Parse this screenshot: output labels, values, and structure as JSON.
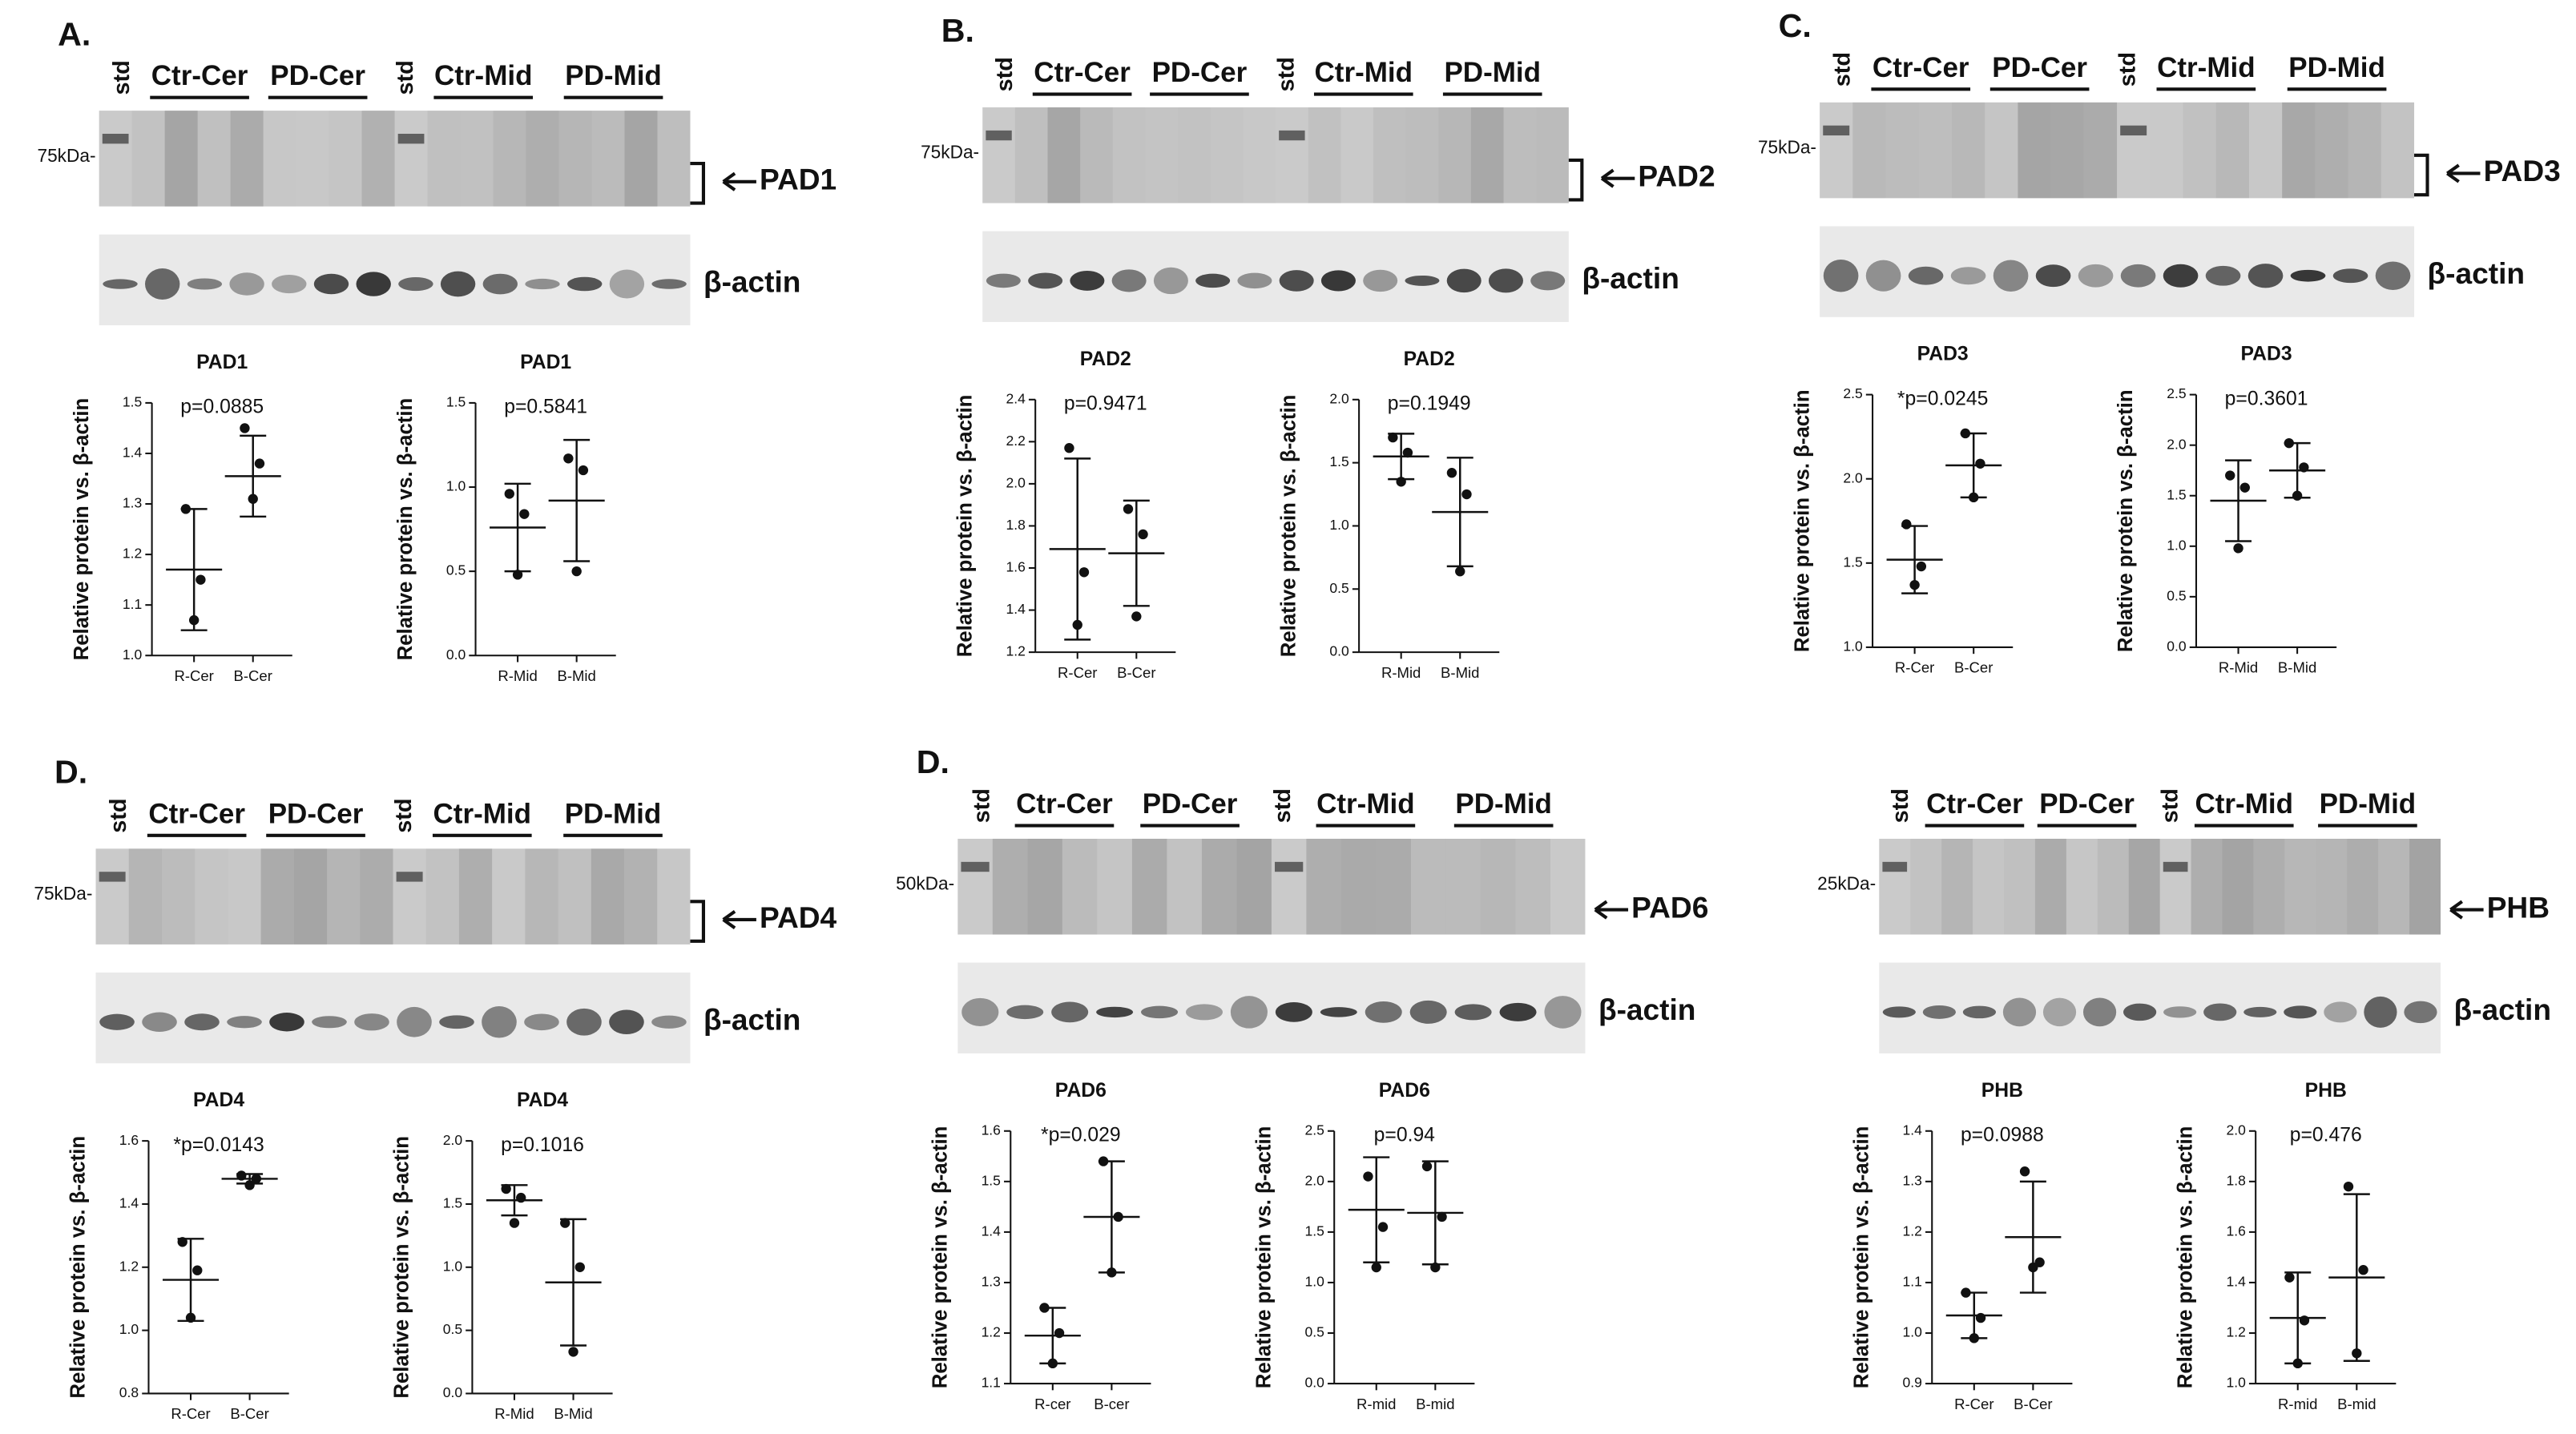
{
  "blots": [
    {
      "label": "A.",
      "lanes": [
        "std",
        "Ctr-Cer",
        "PD-Cer",
        "std",
        "Ctr-Mid",
        "PD-Mid"
      ],
      "marker": "75kDa-",
      "target": "PAD1",
      "loading": "β-actin"
    },
    {
      "label": "B.",
      "lanes": [
        "std",
        "Ctr-Cer",
        "PD-Cer",
        "std",
        "Ctr-Mid",
        "PD-Mid"
      ],
      "marker": "75kDa-",
      "target": "PAD2",
      "loading": "β-actin"
    },
    {
      "label": "C.",
      "lanes": [
        "std",
        "Ctr-Cer",
        "PD-Cer",
        "std",
        "Ctr-Mid",
        "PD-Mid"
      ],
      "marker": "75kDa-",
      "target": "PAD3",
      "loading": "β-actin"
    },
    {
      "label": "D.",
      "lanes": [
        "std",
        "Ctr-Cer",
        "PD-Cer",
        "std",
        "Ctr-Mid",
        "PD-Mid"
      ],
      "marker": "75kDa-",
      "target": "PAD4",
      "loading": "β-actin"
    },
    {
      "label": "D.",
      "lanes": [
        "std",
        "Ctr-Cer",
        "PD-Cer",
        "std",
        "Ctr-Mid",
        "PD-Mid"
      ],
      "marker": "50kDa-",
      "target": "PAD6",
      "loading": "β-actin"
    },
    {
      "lanes": [
        "std",
        "Ctr-Cer",
        "PD-Cer",
        "std",
        "Ctr-Mid",
        "PD-Mid"
      ],
      "marker": "25kDa-",
      "target": "PHB",
      "loading": "β-actin"
    }
  ],
  "chart_data": [
    {
      "type": "dot",
      "title": "PAD1",
      "y_label": "Relative protein vs. β-actin",
      "annotation": "p=0.0885",
      "categories": [
        "R-Cer",
        "B-Cer"
      ],
      "points": [
        [
          1.29,
          1.15,
          1.07
        ],
        [
          1.45,
          1.38,
          1.31
        ]
      ],
      "mean": [
        1.17,
        1.355
      ],
      "sd": [
        0.12,
        0.08
      ],
      "ylim": [
        1,
        1.5
      ],
      "yticks": [
        {
          "value": 1,
          "label": "1.0"
        },
        1.1,
        1.2,
        1.3,
        1.4,
        1.5
      ]
    },
    {
      "type": "dot",
      "title": "PAD1",
      "y_label": "Relative protein vs. β-actin",
      "annotation": "p=0.5841",
      "categories": [
        "R-Mid",
        "B-Mid"
      ],
      "points": [
        [
          0.96,
          0.84,
          0.48
        ],
        [
          1.17,
          1.1,
          0.5
        ]
      ],
      "mean": [
        0.76,
        0.92
      ],
      "sd": [
        0.26,
        0.36
      ],
      "ylim": [
        0,
        1.5
      ],
      "yticks": [
        {
          "value": 0,
          "label": "0.0"
        },
        0.5,
        {
          "value": 1,
          "label": "1.0"
        },
        1.5
      ]
    },
    {
      "type": "dot",
      "title": "PAD2",
      "y_label": "Relative protein vs. β-actin",
      "annotation": "p=0.9471",
      "categories": [
        "R-Cer",
        "B-Cer"
      ],
      "points": [
        [
          2.17,
          1.58,
          1.33
        ],
        [
          1.88,
          1.76,
          1.37
        ]
      ],
      "mean": [
        1.69,
        1.67
      ],
      "sd": [
        0.43,
        0.25
      ],
      "ylim": [
        1.2,
        2.4
      ],
      "yticks": [
        1.2,
        1.4,
        1.6,
        1.8,
        {
          "value": 2,
          "label": "2.0"
        },
        2.2,
        2.4
      ]
    },
    {
      "type": "dot",
      "title": "PAD2",
      "y_label": "Relative protein vs. β-actin",
      "annotation": "p=0.1949",
      "categories": [
        "R-Mid",
        "B-Mid"
      ],
      "points": [
        [
          1.7,
          1.58,
          1.35
        ],
        [
          1.42,
          1.25,
          0.64
        ]
      ],
      "mean": [
        1.55,
        1.11
      ],
      "sd": [
        0.18,
        0.43
      ],
      "ylim": [
        0,
        2
      ],
      "yticks": [
        {
          "value": 0,
          "label": "0.0"
        },
        0.5,
        {
          "value": 1,
          "label": "1.0"
        },
        1.5,
        {
          "value": 2,
          "label": "2.0"
        }
      ]
    },
    {
      "type": "dot",
      "title": "PAD3",
      "y_label": "Relative protein vs. β-actin",
      "annotation": "*p=0.0245",
      "categories": [
        "R-Cer",
        "B-Cer"
      ],
      "points": [
        [
          1.73,
          1.48,
          1.37
        ],
        [
          2.27,
          2.09,
          1.89
        ]
      ],
      "mean": [
        1.52,
        2.08
      ],
      "sd": [
        0.2,
        0.19
      ],
      "ylim": [
        1,
        2.5
      ],
      "yticks": [
        {
          "value": 1,
          "label": "1.0"
        },
        1.5,
        {
          "value": 2,
          "label": "2.0"
        },
        2.5
      ]
    },
    {
      "type": "dot",
      "title": "PAD3",
      "y_label": "Relative protein vs. β-actin",
      "annotation": "p=0.3601",
      "categories": [
        "R-Mid",
        "B-Mid"
      ],
      "points": [
        [
          1.7,
          1.58,
          0.98
        ],
        [
          2.02,
          1.78,
          1.5
        ]
      ],
      "mean": [
        1.45,
        1.75
      ],
      "sd": [
        0.4,
        0.27
      ],
      "ylim": [
        0,
        2.5
      ],
      "yticks": [
        {
          "value": 0,
          "label": "0.0"
        },
        0.5,
        {
          "value": 1,
          "label": "1.0"
        },
        1.5,
        {
          "value": 2,
          "label": "2.0"
        },
        2.5
      ]
    },
    {
      "type": "dot",
      "title": "PAD4",
      "y_label": "Relative protein vs. β-actin",
      "annotation": "*p=0.0143",
      "categories": [
        "R-Cer",
        "B-Cer"
      ],
      "points": [
        [
          1.28,
          1.19,
          1.04
        ],
        [
          1.49,
          1.48,
          1.46
        ]
      ],
      "mean": [
        1.16,
        1.48
      ],
      "sd": [
        0.13,
        0.015
      ],
      "ylim": [
        0.8,
        1.6
      ],
      "yticks": [
        0.8,
        {
          "value": 1,
          "label": "1.0"
        },
        1.2,
        1.4,
        1.6
      ]
    },
    {
      "type": "dot",
      "title": "PAD4",
      "y_label": "Relative protein vs. β-actin",
      "annotation": "p=0.1016",
      "categories": [
        "R-Mid",
        "B-Mid"
      ],
      "points": [
        [
          1.62,
          1.55,
          1.35
        ],
        [
          1.35,
          1.0,
          0.33
        ]
      ],
      "mean": [
        1.53,
        0.88
      ],
      "sd": [
        0.12,
        0.5
      ],
      "ylim": [
        0,
        2
      ],
      "yticks": [
        {
          "value": 0,
          "label": "0.0"
        },
        0.5,
        {
          "value": 1,
          "label": "1.0"
        },
        1.5,
        {
          "value": 2,
          "label": "2.0"
        }
      ]
    },
    {
      "type": "dot",
      "title": "PAD6",
      "y_label": "Relative protein vs. β-actin",
      "annotation": "*p=0.029",
      "categories": [
        "R-cer",
        "B-cer"
      ],
      "points": [
        [
          1.25,
          1.2,
          1.14
        ],
        [
          1.54,
          1.43,
          1.32
        ]
      ],
      "mean": [
        1.195,
        1.43
      ],
      "sd": [
        0.055,
        0.11
      ],
      "ylim": [
        1.1,
        1.6
      ],
      "yticks": [
        1.1,
        1.2,
        1.3,
        1.4,
        1.5,
        1.6
      ]
    },
    {
      "type": "dot",
      "title": "PAD6",
      "y_label": "Relative protein vs. β-actin",
      "annotation": "p=0.94",
      "categories": [
        "R-mid",
        "B-mid"
      ],
      "points": [
        [
          2.05,
          1.55,
          1.15
        ],
        [
          2.15,
          1.65,
          1.15
        ]
      ],
      "mean": [
        1.72,
        1.69
      ],
      "sd": [
        0.52,
        0.51
      ],
      "ylim": [
        0,
        2.5
      ],
      "yticks": [
        {
          "value": 0,
          "label": "0.0"
        },
        0.5,
        {
          "value": 1,
          "label": "1.0"
        },
        1.5,
        {
          "value": 2,
          "label": "2.0"
        },
        2.5
      ]
    },
    {
      "type": "dot",
      "title": "PHB",
      "y_label": "Relative protein vs. β-actin",
      "annotation": "p=0.0988",
      "categories": [
        "R-Cer",
        "B-Cer"
      ],
      "points": [
        [
          1.08,
          1.03,
          0.99
        ],
        [
          1.32,
          1.14,
          1.13
        ]
      ],
      "mean": [
        1.035,
        1.19
      ],
      "sd": [
        0.045,
        0.11
      ],
      "ylim": [
        0.9,
        1.4
      ],
      "yticks": [
        0.9,
        {
          "value": 1,
          "label": "1.0"
        },
        1.1,
        1.2,
        1.3,
        1.4
      ]
    },
    {
      "type": "dot",
      "title": "PHB",
      "y_label": "Relative protein vs. β-actin",
      "annotation": "p=0.476",
      "categories": [
        "R-mid",
        "B-mid"
      ],
      "points": [
        [
          1.42,
          1.25,
          1.08
        ],
        [
          1.78,
          1.45,
          1.12
        ]
      ],
      "mean": [
        1.26,
        1.42
      ],
      "sd": [
        0.18,
        0.33
      ],
      "ylim": [
        1,
        2
      ],
      "yticks": [
        {
          "value": 1,
          "label": "1.0"
        },
        1.2,
        1.4,
        1.6,
        1.8,
        {
          "value": 2,
          "label": "2.0"
        }
      ]
    }
  ]
}
